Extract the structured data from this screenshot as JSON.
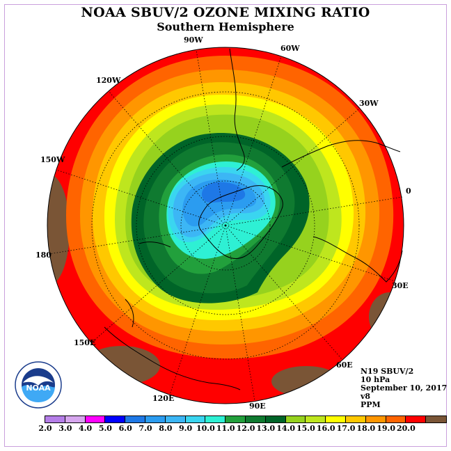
{
  "title": "NOAA SBUV/2 OZONE MIXING RATIO",
  "subtitle": "Southern Hemisphere",
  "longitude_labels": [
    "90W",
    "60W",
    "30W",
    "0",
    "30E",
    "60E",
    "90E",
    "120E",
    "150E",
    "180",
    "150W",
    "120W"
  ],
  "info": {
    "instrument": "N19 SBUV/2",
    "level": "10 hPa",
    "date": "September 10, 2017",
    "version": "v8",
    "units": "PPM"
  },
  "logo_text": "NOAA",
  "colorbar": {
    "ticks": [
      "2.0",
      "3.0",
      "4.0",
      "5.0",
      "6.0",
      "7.0",
      "8.0",
      "9.0",
      "10.0",
      "11.0",
      "12.0",
      "13.0",
      "14.0",
      "15.0",
      "16.0",
      "17.0",
      "18.0",
      "19.0",
      "20.0"
    ],
    "colors": [
      "#b57ee8",
      "#d6a6ee",
      "#ff00ff",
      "#0000ff",
      "#1e78e6",
      "#2b9cf0",
      "#3cb6f5",
      "#3ad5f0",
      "#2ef0d4",
      "#22a03c",
      "#0f7a30",
      "#006428",
      "#96d21e",
      "#bee61e",
      "#ffff00",
      "#ffc800",
      "#ff9600",
      "#ff6400",
      "#ff0000",
      "#7a5536"
    ]
  },
  "colors": {
    "background_frame": "#c9a0dc",
    "ring_fill": "#ff0000",
    "land_brown": "#7a5536"
  }
}
